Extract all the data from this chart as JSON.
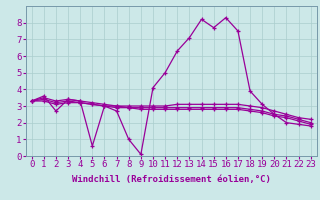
{
  "background_color": "#cce8e8",
  "grid_color": "#aacece",
  "line_color": "#990099",
  "spine_color": "#7799aa",
  "marker": "+",
  "xlabel": "Windchill (Refroidissement éolien,°C)",
  "x_values": [
    0,
    1,
    2,
    3,
    4,
    5,
    6,
    7,
    8,
    9,
    10,
    11,
    12,
    13,
    14,
    15,
    16,
    17,
    18,
    19,
    20,
    21,
    22,
    23
  ],
  "series": [
    [
      3.3,
      3.6,
      2.7,
      3.4,
      3.3,
      0.6,
      3.0,
      2.7,
      1.0,
      0.1,
      4.1,
      5.0,
      6.3,
      7.1,
      8.2,
      7.7,
      8.3,
      7.5,
      3.9,
      3.1,
      2.5,
      2.0,
      1.9,
      1.8
    ],
    [
      3.3,
      3.5,
      3.3,
      3.4,
      3.3,
      3.2,
      3.1,
      3.0,
      3.0,
      3.0,
      3.0,
      3.0,
      3.1,
      3.1,
      3.1,
      3.1,
      3.1,
      3.1,
      3.0,
      2.9,
      2.7,
      2.5,
      2.3,
      2.2
    ],
    [
      3.3,
      3.4,
      3.2,
      3.3,
      3.2,
      3.1,
      3.0,
      3.0,
      2.9,
      2.9,
      2.9,
      2.9,
      2.9,
      2.9,
      2.9,
      2.9,
      2.9,
      2.9,
      2.8,
      2.7,
      2.5,
      2.4,
      2.2,
      2.0
    ],
    [
      3.3,
      3.3,
      3.1,
      3.2,
      3.2,
      3.1,
      3.0,
      2.9,
      2.9,
      2.8,
      2.8,
      2.8,
      2.8,
      2.8,
      2.8,
      2.8,
      2.8,
      2.8,
      2.7,
      2.6,
      2.4,
      2.3,
      2.1,
      1.9
    ]
  ],
  "ylim": [
    0,
    9
  ],
  "xlim": [
    -0.5,
    23.5
  ],
  "yticks": [
    0,
    1,
    2,
    3,
    4,
    5,
    6,
    7,
    8
  ],
  "xticks": [
    0,
    1,
    2,
    3,
    4,
    5,
    6,
    7,
    8,
    9,
    10,
    11,
    12,
    13,
    14,
    15,
    16,
    17,
    18,
    19,
    20,
    21,
    22,
    23
  ],
  "xlabel_fontsize": 6.5,
  "tick_fontsize": 6.5,
  "linewidth": 0.9,
  "markersize": 3.5
}
